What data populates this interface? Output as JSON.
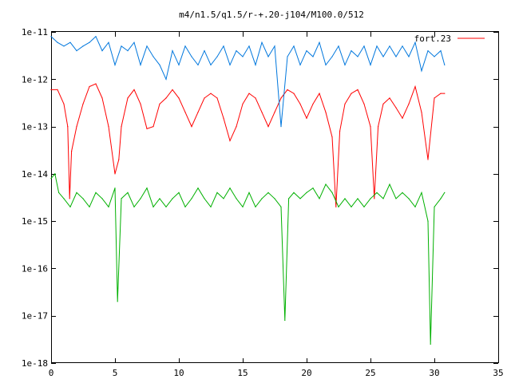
{
  "chart_data": {
    "type": "line",
    "title": "m4/n1.5/q1.5/r-+.20-j104/M100.0/512",
    "xlabel": "",
    "ylabel": "",
    "x_scale": "linear",
    "y_scale": "log",
    "xlim": [
      0,
      35
    ],
    "ylim": [
      1e-18,
      1e-11
    ],
    "x_ticks": [
      0,
      5,
      10,
      15,
      20,
      25,
      30,
      35
    ],
    "x_tick_labels": [
      "0",
      "5",
      "10",
      "15",
      "20",
      "25",
      "30",
      "35"
    ],
    "y_ticks": [
      1e-18,
      1e-17,
      1e-16,
      1e-15,
      1e-14,
      1e-13,
      1e-12,
      1e-11
    ],
    "y_tick_labels": [
      "1e-18",
      "1e-17",
      "1e-16",
      "1e-15",
      "1e-14",
      "1e-13",
      "1e-12",
      "1e-11"
    ],
    "grid": false,
    "legend_position": "top-right",
    "series": [
      {
        "name": "fort.23",
        "color": "#ff0000",
        "x": [
          0,
          0.5,
          1,
          1.3,
          1.45,
          1.6,
          2,
          2.5,
          3,
          3.5,
          4,
          4.5,
          5,
          5.3,
          5.5,
          6,
          6.5,
          7,
          7.5,
          8,
          8.5,
          9,
          9.5,
          10,
          10.5,
          11,
          11.5,
          12,
          12.5,
          13,
          13.5,
          14,
          14.5,
          15,
          15.5,
          16,
          16.5,
          17,
          17.5,
          18,
          18.5,
          19,
          19.5,
          20,
          20.5,
          21,
          21.5,
          22,
          22.3,
          22.6,
          23,
          23.5,
          24,
          24.5,
          25,
          25.3,
          25.6,
          26,
          26.5,
          27,
          27.5,
          28,
          28.5,
          29,
          29.5,
          30,
          30.5,
          30.8
        ],
        "y": [
          6e-13,
          6e-13,
          3e-13,
          1e-13,
          3e-15,
          3e-14,
          1e-13,
          3e-13,
          7e-13,
          8e-13,
          4e-13,
          1e-13,
          1e-14,
          2e-14,
          1e-13,
          4e-13,
          6e-13,
          3e-13,
          9e-14,
          1e-13,
          3e-13,
          4e-13,
          6e-13,
          4e-13,
          2e-13,
          1e-13,
          2e-13,
          4e-13,
          5e-13,
          4e-13,
          1.5e-13,
          5e-14,
          1e-13,
          3e-13,
          5e-13,
          4e-13,
          2e-13,
          1e-13,
          2e-13,
          4e-13,
          6e-13,
          5e-13,
          3e-13,
          1.5e-13,
          3e-13,
          5e-13,
          2e-13,
          6e-14,
          2e-15,
          8e-14,
          3e-13,
          5e-13,
          6e-13,
          3e-13,
          1e-13,
          3e-15,
          1e-13,
          3e-13,
          4e-13,
          2.5e-13,
          1.5e-13,
          3e-13,
          7e-13,
          2e-13,
          2e-14,
          4e-13,
          5e-13,
          5e-13
        ]
      },
      {
        "color": "#0077dd",
        "x": [
          0,
          0.5,
          1,
          1.5,
          2,
          2.5,
          3,
          3.5,
          4,
          4.5,
          5,
          5.5,
          6,
          6.5,
          7,
          7.5,
          8,
          8.5,
          9,
          9.5,
          10,
          10.5,
          11,
          11.5,
          12,
          12.5,
          13,
          13.5,
          14,
          14.5,
          15,
          15.5,
          16,
          16.5,
          17,
          17.5,
          18,
          18.5,
          19,
          19.5,
          20,
          20.5,
          21,
          21.5,
          22,
          22.5,
          23,
          23.5,
          24,
          24.5,
          25,
          25.5,
          26,
          26.5,
          27,
          27.5,
          28,
          28.5,
          29,
          29.5,
          30,
          30.5,
          30.8
        ],
        "y": [
          8e-12,
          6e-12,
          5e-12,
          6e-12,
          4e-12,
          5e-12,
          6e-12,
          8e-12,
          4e-12,
          6e-12,
          2e-12,
          5e-12,
          4e-12,
          6e-12,
          2e-12,
          5e-12,
          3e-12,
          2e-12,
          1e-12,
          4e-12,
          2e-12,
          5e-12,
          3e-12,
          2e-12,
          4e-12,
          2e-12,
          3e-12,
          5e-12,
          2e-12,
          4e-12,
          3e-12,
          5e-12,
          2e-12,
          6e-12,
          3e-12,
          5e-12,
          1e-13,
          3e-12,
          5e-12,
          2e-12,
          4e-12,
          3e-12,
          6e-12,
          2e-12,
          3e-12,
          5e-12,
          2e-12,
          4e-12,
          3e-12,
          5e-12,
          2e-12,
          5e-12,
          3e-12,
          5e-12,
          3e-12,
          5e-12,
          3e-12,
          6e-12,
          1.5e-12,
          4e-12,
          3e-12,
          4e-12,
          2e-12
        ]
      },
      {
        "color": "#00b000",
        "x": [
          0,
          0.3,
          0.6,
          1,
          1.5,
          2,
          2.5,
          3,
          3.5,
          4,
          4.5,
          5,
          5.2,
          5.5,
          6,
          6.5,
          7,
          7.5,
          8,
          8.5,
          9,
          9.5,
          10,
          10.5,
          11,
          11.5,
          12,
          12.5,
          13,
          13.5,
          14,
          14.5,
          15,
          15.5,
          16,
          16.5,
          17,
          17.5,
          18,
          18.3,
          18.6,
          19,
          19.5,
          20,
          20.5,
          21,
          21.5,
          22,
          22.5,
          23,
          23.5,
          24,
          24.5,
          25,
          25.5,
          26,
          26.5,
          27,
          27.5,
          28,
          28.5,
          29,
          29.5,
          29.7,
          30,
          30.5,
          30.8
        ],
        "y": [
          8e-15,
          1e-14,
          4e-15,
          3e-15,
          2e-15,
          4e-15,
          3e-15,
          2e-15,
          4e-15,
          3e-15,
          2e-15,
          5e-15,
          2e-17,
          3e-15,
          4e-15,
          2e-15,
          3e-15,
          5e-15,
          2e-15,
          3e-15,
          2e-15,
          3e-15,
          4e-15,
          2e-15,
          3e-15,
          5e-15,
          3e-15,
          2e-15,
          4e-15,
          3e-15,
          5e-15,
          3e-15,
          2e-15,
          4e-15,
          2e-15,
          3e-15,
          4e-15,
          3e-15,
          2e-15,
          8e-18,
          3e-15,
          4e-15,
          3e-15,
          4e-15,
          5e-15,
          3e-15,
          6e-15,
          4e-15,
          2e-15,
          3e-15,
          2e-15,
          3e-15,
          2e-15,
          3e-15,
          4e-15,
          3e-15,
          6e-15,
          3e-15,
          4e-15,
          3e-15,
          2e-15,
          4e-15,
          1e-15,
          2.5e-18,
          2e-15,
          3e-15,
          4e-15
        ]
      }
    ]
  }
}
